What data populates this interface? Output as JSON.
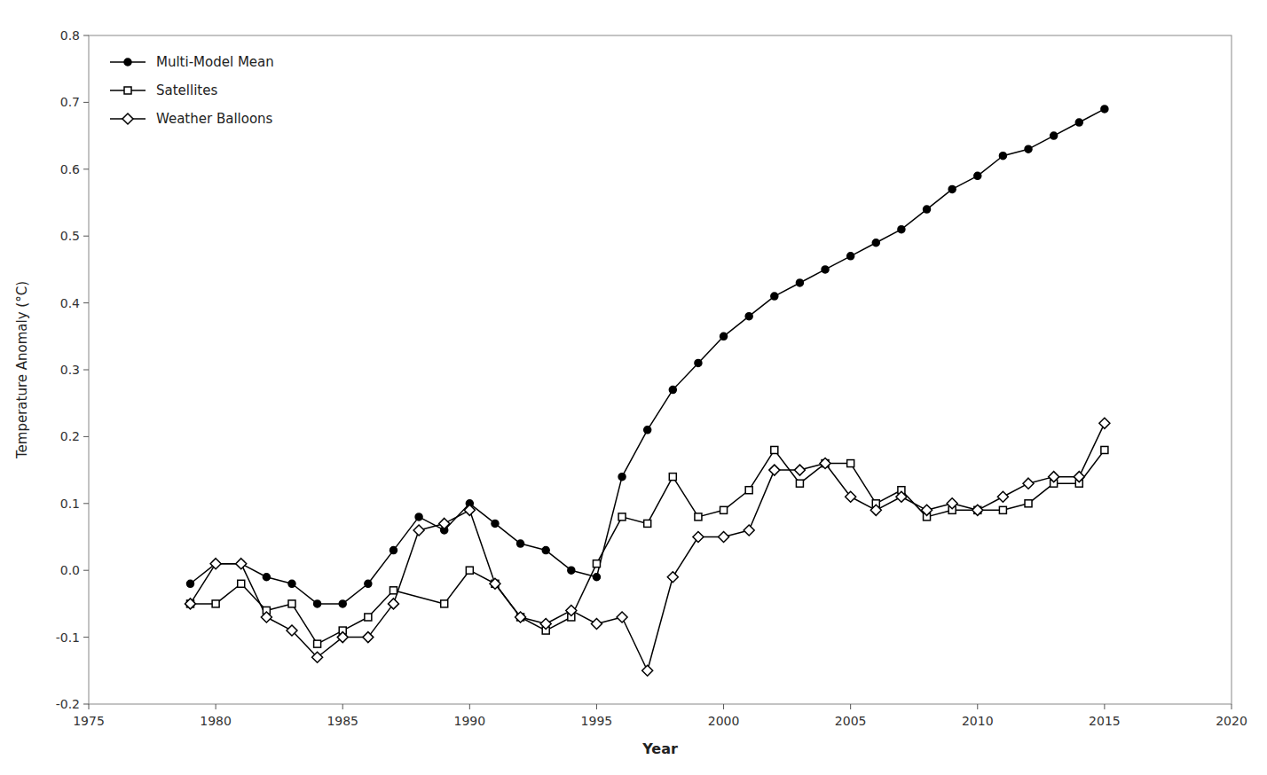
{
  "chart_data": {
    "type": "line",
    "xlabel": "Year",
    "ylabel": "Temperature Anomaly (°C)",
    "xlim": [
      1975,
      2020
    ],
    "ylim": [
      -0.2,
      0.8
    ],
    "xticks": [
      1975,
      1980,
      1985,
      1990,
      1995,
      2000,
      2005,
      2010,
      2015,
      2020
    ],
    "yticks": [
      -0.2,
      -0.1,
      {
        "value": 0.0,
        "label": "0.0"
      },
      0.1,
      0.2,
      0.3,
      0.4,
      0.5,
      0.6,
      0.7,
      0.8
    ],
    "grid": false,
    "legend": "upper left",
    "series": [
      {
        "name": "Multi-Model Mean",
        "color": "#000000",
        "marker": "circle",
        "x": [
          1979,
          1980,
          1981,
          1982,
          1983,
          1984,
          1985,
          1986,
          1987,
          1988,
          1989,
          1990,
          1991,
          1992,
          1993,
          1994,
          1995,
          1996,
          1997,
          1998,
          1999,
          2000,
          2001,
          2002,
          2003,
          2004,
          2005,
          2006,
          2007,
          2008,
          2009,
          2010,
          2011,
          2012,
          2013,
          2014,
          2015
        ],
        "values": [
          -0.02,
          0.01,
          0.01,
          -0.01,
          -0.02,
          -0.05,
          -0.05,
          -0.02,
          0.03,
          0.08,
          0.06,
          0.1,
          0.07,
          0.04,
          0.03,
          0.0,
          -0.01,
          0.14,
          0.21,
          0.27,
          0.31,
          0.35,
          0.38,
          0.41,
          0.43,
          0.45,
          0.47,
          0.49,
          0.51,
          0.54,
          0.57,
          0.59,
          0.62,
          0.63,
          0.65,
          0.67,
          0.69
        ]
      },
      {
        "name": "Satellites",
        "color": "#000000",
        "marker": "square",
        "x": [
          1979,
          1980,
          1981,
          1982,
          1983,
          1984,
          1985,
          1986,
          1987,
          1989,
          1990,
          1991,
          1992,
          1993,
          1994,
          1995,
          1996,
          1997,
          1998,
          1999,
          2000,
          2001,
          2002,
          2003,
          2004,
          2005,
          2006,
          2007,
          2008,
          2009,
          2010,
          2011,
          2012,
          2013,
          2014,
          2015
        ],
        "values": [
          -0.05,
          -0.05,
          -0.02,
          -0.06,
          -0.05,
          -0.11,
          -0.09,
          -0.07,
          -0.03,
          -0.05,
          0.0,
          -0.02,
          -0.07,
          -0.09,
          -0.07,
          0.01,
          0.08,
          0.07,
          0.14,
          0.08,
          0.09,
          0.12,
          0.18,
          0.13,
          0.16,
          0.16,
          0.1,
          0.12,
          0.08,
          0.09,
          0.09,
          0.09,
          0.1,
          0.13,
          0.13,
          0.18
        ]
      },
      {
        "name": "Weather Balloons",
        "color": "#000000",
        "marker": "diamond",
        "x": [
          1979,
          1980,
          1981,
          1982,
          1983,
          1984,
          1985,
          1986,
          1987,
          1988,
          1989,
          1990,
          1991,
          1992,
          1993,
          1994,
          1995,
          1996,
          1997,
          1998,
          1999,
          2000,
          2001,
          2002,
          2003,
          2004,
          2005,
          2006,
          2007,
          2008,
          2009,
          2010,
          2011,
          2012,
          2013,
          2014,
          2015
        ],
        "values": [
          -0.05,
          0.01,
          0.01,
          -0.07,
          -0.09,
          -0.13,
          -0.1,
          -0.1,
          -0.05,
          0.06,
          0.07,
          0.09,
          -0.02,
          -0.07,
          -0.08,
          -0.06,
          -0.08,
          -0.07,
          -0.15,
          -0.01,
          0.05,
          0.05,
          0.06,
          0.15,
          0.15,
          0.16,
          0.11,
          0.09,
          0.11,
          0.09,
          0.1,
          0.09,
          0.11,
          0.13,
          0.14,
          0.14,
          0.22
        ]
      }
    ]
  }
}
